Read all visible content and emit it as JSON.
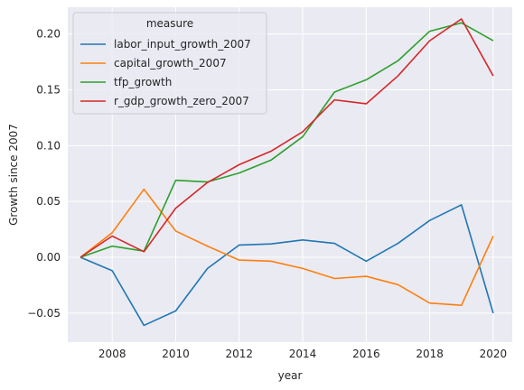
{
  "chart_data": {
    "type": "line",
    "xlabel": "year",
    "ylabel": "Growth since 2007",
    "xlim": [
      2006.6,
      2020.6
    ],
    "ylim": [
      -0.076,
      0.224
    ],
    "x_ticks": [
      2008,
      2010,
      2012,
      2014,
      2016,
      2018,
      2020
    ],
    "y_ticks": [
      -0.05,
      0.0,
      0.05,
      0.1,
      0.15,
      0.2
    ],
    "y_tick_labels": [
      "−0.05",
      "0.00",
      "0.05",
      "0.10",
      "0.15",
      "0.20"
    ],
    "grid": true,
    "legend": {
      "title": "measure",
      "placement": "top-left"
    },
    "x": [
      2007,
      2008,
      2009,
      2010,
      2011,
      2012,
      2013,
      2014,
      2015,
      2016,
      2017,
      2018,
      2019,
      2020
    ],
    "series": [
      {
        "name": "labor_input_growth_2007",
        "color": "#1f77b4",
        "values": [
          0.0,
          -0.012,
          -0.061,
          -0.048,
          -0.01,
          0.011,
          0.012,
          0.0155,
          0.0125,
          -0.0035,
          0.0125,
          0.033,
          0.047,
          -0.05
        ]
      },
      {
        "name": "capital_growth_2007",
        "color": "#ff7f0e",
        "values": [
          0.0,
          0.022,
          0.061,
          0.0235,
          0.01,
          -0.0025,
          -0.0035,
          -0.01,
          -0.019,
          -0.017,
          -0.0245,
          -0.041,
          -0.043,
          0.019
        ]
      },
      {
        "name": "tfp_growth",
        "color": "#2ca02c",
        "values": [
          0.0,
          0.01,
          0.0055,
          0.069,
          0.0675,
          0.0755,
          0.087,
          0.108,
          0.148,
          0.159,
          0.176,
          0.2025,
          0.21,
          0.194
        ]
      },
      {
        "name": "r_gdp_growth_zero_2007",
        "color": "#d62728",
        "values": [
          0.0,
          0.019,
          0.005,
          0.044,
          0.067,
          0.083,
          0.095,
          0.1125,
          0.141,
          0.1375,
          0.1625,
          0.194,
          0.2135,
          0.1625
        ]
      }
    ]
  }
}
